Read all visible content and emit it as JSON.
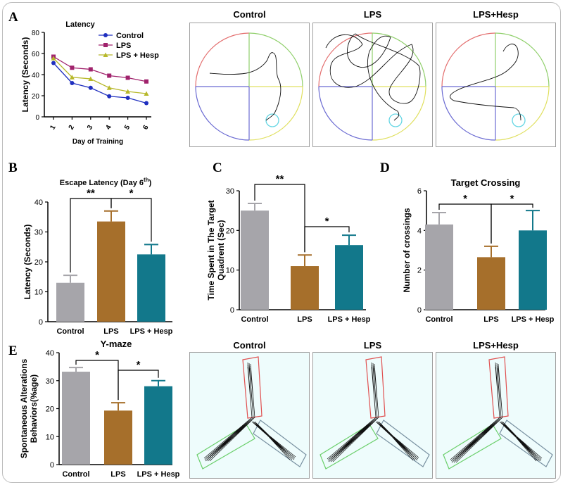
{
  "panel_letters": {
    "a": "A",
    "b": "B",
    "c": "C",
    "d": "D",
    "e": "E"
  },
  "chart_data": [
    {
      "id": "A",
      "type": "line",
      "title": "Latency",
      "xlabel": "Day of Training",
      "ylabel": "Latency (Seconds)",
      "x": [
        1,
        2,
        3,
        4,
        5,
        6
      ],
      "xticks": [
        "1",
        "2",
        "3",
        "4",
        "5",
        "6"
      ],
      "ylim": [
        0,
        80
      ],
      "yticks": [
        0,
        20,
        40,
        60,
        80
      ],
      "legend_position": "top-right",
      "series": [
        {
          "name": "Control",
          "color": "#1f2fbf",
          "marker": "circle",
          "values": [
            51,
            32,
            27.5,
            19.5,
            18,
            13
          ]
        },
        {
          "name": "LPS",
          "color": "#a0226c",
          "marker": "square",
          "values": [
            57,
            46.5,
            45,
            39,
            37,
            33.5
          ]
        },
        {
          "name": "LPS + Hesp",
          "color": "#b7b82a",
          "marker": "triangle",
          "values": [
            55.5,
            37.5,
            36,
            27.5,
            24,
            22
          ]
        }
      ]
    },
    {
      "id": "B",
      "type": "bar",
      "title": "Escape Latency (Day 6",
      "title_sup": "th",
      "title_end": ")",
      "ylabel": "Latency (Seconds)",
      "categories": [
        "Control",
        "LPS",
        "LPS + Hesp"
      ],
      "values": [
        13,
        33.5,
        22.5
      ],
      "errors": [
        2.5,
        3.5,
        3.3
      ],
      "ylim": [
        0,
        40
      ],
      "yticks": [
        0,
        10,
        20,
        30,
        40
      ],
      "colors": [
        "#a6a5aa",
        "#a66f2b",
        "#12788b"
      ],
      "significance": [
        {
          "from": 0,
          "to": 1,
          "label": "**"
        },
        {
          "from": 1,
          "to": 2,
          "label": "*"
        }
      ]
    },
    {
      "id": "C",
      "type": "bar",
      "title": "",
      "ylabel_lines": [
        "Time Spent in The Target",
        "Quadrent (Sec)"
      ],
      "categories": [
        "Control",
        "LPS",
        "LPS + Hesp"
      ],
      "values": [
        25,
        11,
        16.3
      ],
      "errors": [
        1.8,
        2.8,
        2.5
      ],
      "ylim": [
        0,
        30
      ],
      "yticks": [
        0,
        10,
        20,
        30
      ],
      "colors": [
        "#a6a5aa",
        "#a66f2b",
        "#12788b"
      ],
      "significance": [
        {
          "from": 0,
          "to": 1,
          "label": "**"
        },
        {
          "from": 1,
          "to": 2,
          "label": "*"
        }
      ]
    },
    {
      "id": "D",
      "type": "bar",
      "title": "Target Crossing",
      "ylabel": "Number of crossings",
      "categories": [
        "Control",
        "LPS",
        "LPS + Hesp"
      ],
      "values": [
        4.3,
        2.65,
        4.0
      ],
      "errors": [
        0.6,
        0.55,
        1.0
      ],
      "ylim": [
        0,
        6
      ],
      "yticks": [
        0,
        2,
        4,
        6
      ],
      "colors": [
        "#a6a5aa",
        "#a66f2b",
        "#12788b"
      ],
      "significance": [
        {
          "from": 0,
          "to": 1,
          "label": "*"
        },
        {
          "from": 1,
          "to": 2,
          "label": "*"
        }
      ]
    },
    {
      "id": "E",
      "type": "bar",
      "title": "Y-maze",
      "ylabel_lines": [
        "Spontaneous Alterations",
        "Behaviors(%age)"
      ],
      "categories": [
        "Control",
        "LPS",
        "LPS + Hesp"
      ],
      "values": [
        33.2,
        19.3,
        28
      ],
      "errors": [
        1.5,
        2.8,
        2.0
      ],
      "ylim": [
        0,
        40
      ],
      "yticks": [
        0,
        10,
        20,
        30,
        40
      ],
      "colors": [
        "#a6a5aa",
        "#a66f2b",
        "#12788b"
      ],
      "significance": [
        {
          "from": 0,
          "to": 1,
          "label": "*"
        },
        {
          "from": 1,
          "to": 2,
          "label": "*"
        }
      ]
    }
  ],
  "water_maze": {
    "titles": [
      "Control",
      "LPS",
      "LPS+Hesp"
    ],
    "quadrant_colors": {
      "top_left": "#e36d6d",
      "top_right": "#8fcf6a",
      "bottom_left": "#6a6ad2",
      "bottom_right": "#e0e060",
      "platform": "#66d6e4"
    }
  },
  "y_maze": {
    "titles": [
      "Control",
      "LPS",
      "LPS+Hesp"
    ],
    "arm_colors": {
      "top": "#e05050",
      "left": "#6bcf6b",
      "right": "#7890a0"
    }
  }
}
